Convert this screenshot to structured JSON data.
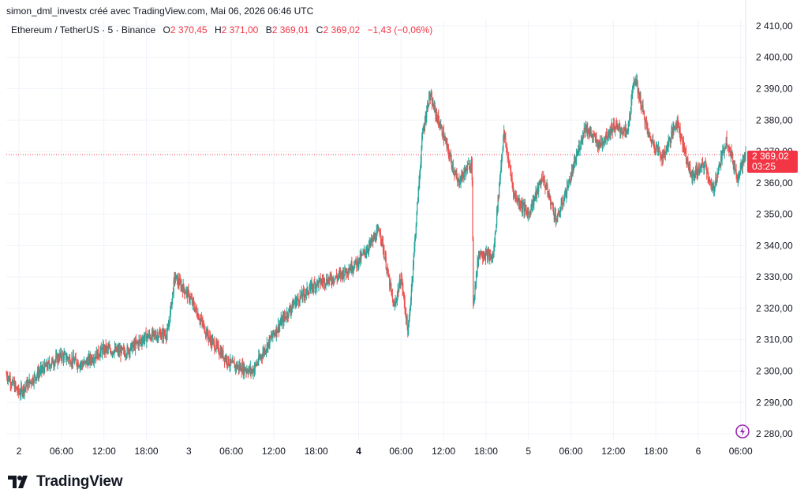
{
  "header": {
    "attribution": "simon_dml_investx créé avec TradingView.com, Mai 06, 2026 06:46 UTC"
  },
  "symbol": {
    "name": "Ethereum / TetherUS · 5 · Binance",
    "open_label": "O",
    "open_value": "2 370,45",
    "high_label": "H",
    "high_value": "2 371,00",
    "low_label": "B",
    "low_value": "2 369,01",
    "close_label": "C",
    "close_value": "2 369,02",
    "change": "−1,43 (−0,06%)"
  },
  "last_price": {
    "value": "2 369,02",
    "countdown": "03:25"
  },
  "branding": {
    "name": "TradingView"
  },
  "colors": {
    "up": "#26a69a",
    "down": "#ef5350",
    "accent": "#f23645",
    "grid": "#f0f3fa"
  },
  "icons": {
    "flash": "lightning-icon",
    "logo": "tradingview-logo-icon"
  },
  "chart_data": {
    "type": "candlestick",
    "interval": "5",
    "y_axis": {
      "ticks": [
        "2 280,00",
        "2 290,00",
        "2 300,00",
        "2 310,00",
        "2 320,00",
        "2 330,00",
        "2 340,00",
        "2 350,00",
        "2 360,00",
        "2 370,00",
        "2 380,00",
        "2 390,00",
        "2 400,00",
        "2 410,00"
      ],
      "tick_values": [
        2280,
        2290,
        2300,
        2310,
        2320,
        2330,
        2340,
        2350,
        2360,
        2370,
        2380,
        2390,
        2400,
        2410
      ],
      "range": [
        2278,
        2412
      ]
    },
    "x_axis": {
      "ticks": [
        "2",
        "06:00",
        "12:00",
        "18:00",
        "3",
        "06:00",
        "12:00",
        "18:00",
        "4",
        "06:00",
        "12:00",
        "18:00",
        "5",
        "06:00",
        "12:00",
        "18:00",
        "6",
        "06:00"
      ],
      "bold": [
        false,
        false,
        false,
        false,
        false,
        false,
        false,
        false,
        true,
        false,
        false,
        false,
        false,
        false,
        false,
        false,
        false,
        false
      ],
      "range_hours": [
        -1.8,
        102.7
      ]
    },
    "grid": true,
    "price_path": [
      [
        -1.8,
        2299
      ],
      [
        0,
        2293
      ],
      [
        3,
        2300
      ],
      [
        6,
        2305
      ],
      [
        9,
        2302
      ],
      [
        12,
        2307
      ],
      [
        15,
        2306
      ],
      [
        18,
        2311
      ],
      [
        21,
        2312
      ],
      [
        22,
        2330
      ],
      [
        24,
        2324
      ],
      [
        27,
        2310
      ],
      [
        30,
        2302
      ],
      [
        33,
        2300
      ],
      [
        36,
        2312
      ],
      [
        39,
        2322
      ],
      [
        42,
        2328
      ],
      [
        45,
        2330
      ],
      [
        48,
        2335
      ],
      [
        51,
        2345
      ],
      [
        53,
        2320
      ],
      [
        54,
        2330
      ],
      [
        55,
        2312
      ],
      [
        57,
        2375
      ],
      [
        58,
        2388
      ],
      [
        60,
        2375
      ],
      [
        62,
        2360
      ],
      [
        64,
        2367
      ],
      [
        64.2,
        2322
      ],
      [
        65,
        2338
      ],
      [
        67,
        2336
      ],
      [
        68.5,
        2376
      ],
      [
        70,
        2356
      ],
      [
        72,
        2350
      ],
      [
        74,
        2362
      ],
      [
        76,
        2348
      ],
      [
        78,
        2362
      ],
      [
        80,
        2378
      ],
      [
        82,
        2372
      ],
      [
        84,
        2378
      ],
      [
        86,
        2376
      ],
      [
        87,
        2394
      ],
      [
        89,
        2375
      ],
      [
        91,
        2368
      ],
      [
        93,
        2380
      ],
      [
        95,
        2362
      ],
      [
        97,
        2366
      ],
      [
        98,
        2357
      ],
      [
        100,
        2374
      ],
      [
        101.5,
        2362
      ],
      [
        102.7,
        2369
      ]
    ],
    "last_close": 2369.02,
    "last_change": -1.43,
    "last_change_pct": -0.06
  }
}
